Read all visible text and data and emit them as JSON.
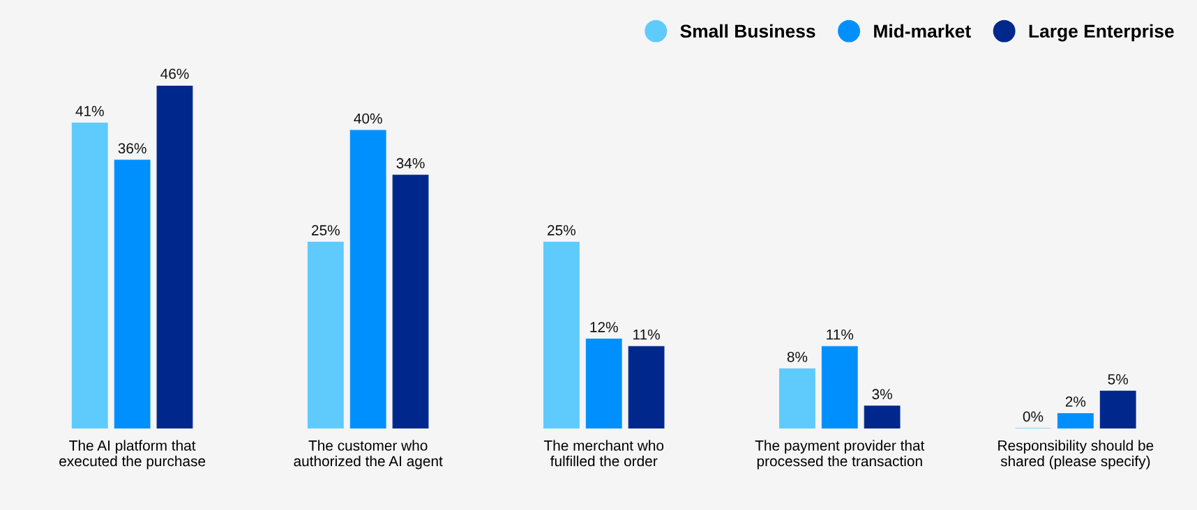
{
  "chart_data": {
    "type": "bar",
    "categories": [
      "The AI platform that\nexecuted the purchase",
      "The customer who\nauthorized the AI agent",
      "The merchant who\nfulfilled the order",
      "The payment provider that\nprocessed the transaction",
      "Responsibility should be\nshared (please specify)"
    ],
    "series": [
      {
        "name": "Small Business",
        "color": "#5fcbfd",
        "values": [
          41,
          25,
          25,
          8,
          0
        ],
        "value_labels": [
          "41%",
          "25%",
          "25%",
          "8%",
          "0%"
        ]
      },
      {
        "name": "Mid-market",
        "color": "#0090fe",
        "values": [
          36,
          40,
          12,
          11,
          2
        ],
        "value_labels": [
          "36%",
          "40%",
          "12%",
          "11%",
          "2%"
        ]
      },
      {
        "name": "Large Enterprise",
        "color": "#00288c",
        "values": [
          46,
          34,
          11,
          3,
          5
        ],
        "value_labels": [
          "46%",
          "34%",
          "11%",
          "3%",
          "5%"
        ]
      }
    ],
    "legend": "top right",
    "grid": false
  }
}
